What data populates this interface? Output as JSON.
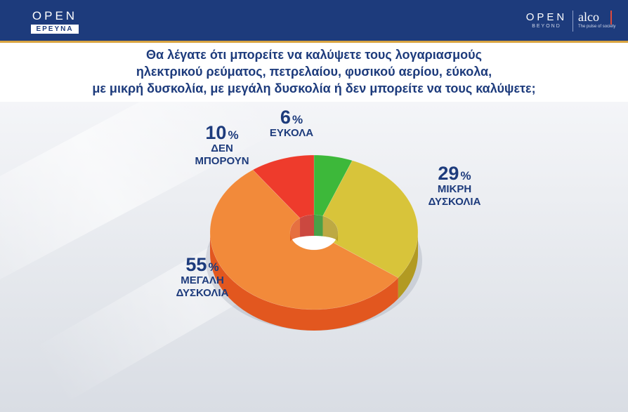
{
  "header": {
    "left_logo_word": "OPEN",
    "left_logo_sub": "ΕΡΕΥΝΑ",
    "right_logo_word": "OPEN",
    "right_logo_sub": "BEYOND",
    "alco_word": "alco",
    "alco_tagline": "The pulse of society"
  },
  "chart_data": {
    "type": "pie",
    "style": "donut-3d",
    "title": "Θα λέγατε ότι μπορείτε να καλύψετε τους λογαριασμούς ηλεκτρικού ρεύματος, πετρελαίου, φυσικού αερίου, εύκολα, με μικρή δυσκολία, με μεγάλη δυσκολία ή δεν μπορείτε να τους καλύψετε;",
    "title_lines": [
      "Θα λέγατε ότι μπορείτε να καλύψετε τους λογαριασμούς",
      "ηλεκτρικού ρεύματος, πετρελαίου, φυσικού αερίου, εύκολα,",
      "με μικρή δυσκολία, με μεγάλη δυσκολία ή δεν μπορείτε να τους καλύψετε;"
    ],
    "unit": "%",
    "slices": [
      {
        "value": 6,
        "label": "ΕΥΚΟΛΑ",
        "label_lines": "ΕΥΚΟΛΑ",
        "color": "#3db83a",
        "side": "#2a8f28"
      },
      {
        "value": 29,
        "label": "ΜΙΚΡΗ ΔΥΣΚΟΛΙΑ",
        "label_lines": "ΜΙΚΡΗ\nΔΥΣΚΟΛΙΑ",
        "color": "#d8c43a",
        "side": "#b29a22"
      },
      {
        "value": 55,
        "label": "ΜΕΓΑΛΗ ΔΥΣΚΟΛΙΑ",
        "label_lines": "ΜΕΓΑΛΗ\nΔΥΣΚΟΛΙΑ",
        "color": "#f28a3a",
        "side": "#e2571f"
      },
      {
        "value": 10,
        "label": "ΔΕΝ ΜΠΟΡΟΥΝ",
        "label_lines": "ΔΕΝ\nΜΠΟΡΟΥΝ",
        "color": "#ee3b2c",
        "side": "#c2281e"
      }
    ]
  }
}
